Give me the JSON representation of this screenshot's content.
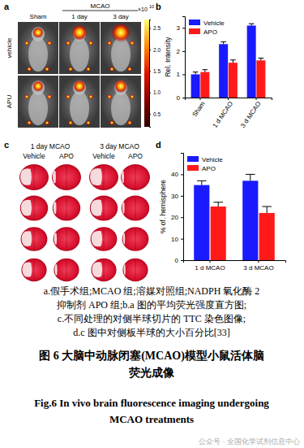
{
  "chart_data": [
    {
      "type": "bar",
      "panel_label": "b",
      "y_label": "Rel. Intensity",
      "categories": [
        "Sham",
        "1 d MCAO",
        "3 d MCAO"
      ],
      "series": [
        {
          "name": "Vehicle",
          "color": "#1a1aff",
          "values": [
            1.0,
            2.3,
            3.1
          ],
          "errors": [
            0.1,
            0.1,
            0.08
          ]
        },
        {
          "name": "APO",
          "color": "#ff1a1a",
          "values": [
            1.1,
            1.5,
            1.6
          ],
          "errors": [
            0.1,
            0.12,
            0.1
          ]
        }
      ],
      "ylim": [
        0,
        3.5
      ],
      "yticks": [
        0,
        1,
        2,
        3
      ],
      "legend": "upper left"
    },
    {
      "type": "bar",
      "panel_label": "d",
      "y_label": "% of. hemisphere",
      "categories": [
        "1 d MCAO",
        "3 d MCAO"
      ],
      "series": [
        {
          "name": "Vehicle",
          "color": "#1a1aff",
          "values": [
            35,
            37
          ],
          "errors": [
            2,
            3
          ]
        },
        {
          "name": "APO",
          "color": "#ff1a1a",
          "values": [
            25,
            22
          ],
          "errors": [
            2,
            3
          ]
        }
      ],
      "ylim": [
        0,
        50
      ],
      "yticks": [
        0,
        10,
        20,
        30,
        40
      ],
      "legend": "upper left"
    }
  ],
  "panel_a": {
    "label": "a",
    "column_group": "MCAO",
    "columns": [
      "Sham",
      "1 day",
      "3 day"
    ],
    "rows": [
      "vehicle",
      "APU"
    ],
    "colorbar": {
      "multiplier": "×10",
      "exponent": "10",
      "range": [
        0.2,
        2.7
      ],
      "ticks": [
        {
          "value": 0.5,
          "label": "0.5"
        },
        {
          "value": 1,
          "label": "1.0"
        },
        {
          "value": 1.5,
          "label": "1.5"
        },
        {
          "value": 2,
          "label": "2.0"
        },
        {
          "value": 2.5,
          "label": "2.5"
        }
      ]
    }
  },
  "panel_c": {
    "label": "c",
    "groups": [
      "1 day MCAO",
      "3 day MCAO"
    ],
    "subgroups": [
      "Vehicle",
      "APO"
    ]
  },
  "caption": {
    "notes": [
      "a.假手术组;MCAO 组;溶媒对照组;NADPH 氧化酶 2",
      "抑制剂 APO 组;b.a 图的平均荧光强度直方图;",
      "c.不同处理的对侧半球切片的 TTC 染色图像;",
      "d.c 图中对侧板半球的大小百分比[33]"
    ],
    "title_cn": [
      "图 6   大脑中动脉闭塞(MCAO)模型小鼠活体脑",
      "荧光成像"
    ],
    "title_en": [
      "Fig.6   In vivo brain fluorescence imaging undergoing",
      "MCAO treatments"
    ],
    "watermark": "公众号 · 全国化学试剂信息中心"
  }
}
